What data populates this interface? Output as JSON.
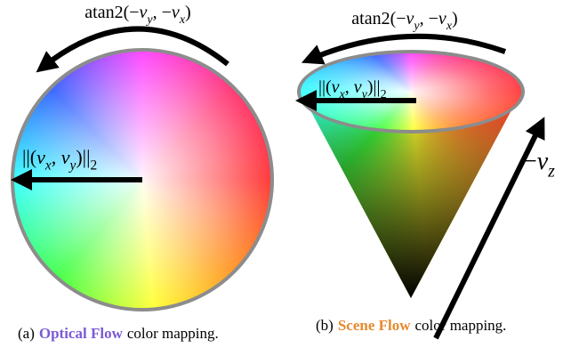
{
  "labels": {
    "angle_a": [
      {
        "t": "atan2(−"
      },
      {
        "t": "v",
        "italic": true
      },
      {
        "t": "y",
        "sub": true,
        "italic": true
      },
      {
        "t": ", −"
      },
      {
        "t": "v",
        "italic": true
      },
      {
        "t": "x",
        "sub": true,
        "italic": true
      },
      {
        "t": ")"
      }
    ],
    "norm_a": [
      {
        "t": "||("
      },
      {
        "t": "v",
        "italic": true
      },
      {
        "t": "x",
        "sub": true,
        "italic": true
      },
      {
        "t": ", "
      },
      {
        "t": "v",
        "italic": true
      },
      {
        "t": "y",
        "sub": true,
        "italic": true
      },
      {
        "t": ")||"
      },
      {
        "t": "2",
        "sub": true
      }
    ],
    "angle_b": [
      {
        "t": "atan2(−"
      },
      {
        "t": "v",
        "italic": true
      },
      {
        "t": "y",
        "sub": true,
        "italic": true
      },
      {
        "t": ", −"
      },
      {
        "t": "v",
        "italic": true
      },
      {
        "t": "x",
        "sub": true,
        "italic": true
      },
      {
        "t": ")"
      }
    ],
    "norm_b": [
      {
        "t": "||("
      },
      {
        "t": "v",
        "italic": true
      },
      {
        "t": "x",
        "sub": true,
        "italic": true
      },
      {
        "t": ", "
      },
      {
        "t": "v",
        "italic": true
      },
      {
        "t": "y",
        "sub": true,
        "italic": true
      },
      {
        "t": ")||"
      },
      {
        "t": "2",
        "sub": true
      }
    ],
    "vz": [
      {
        "t": "−"
      },
      {
        "t": "v",
        "italic": true
      },
      {
        "t": "z",
        "sub": true,
        "italic": true
      }
    ]
  },
  "captions": {
    "a": {
      "prefix": "(a)",
      "highlight": "Optical Flow",
      "suffix": "color mapping."
    },
    "b": {
      "prefix": "(b)",
      "highlight": "Scene Flow",
      "suffix": "color mapping."
    }
  }
}
